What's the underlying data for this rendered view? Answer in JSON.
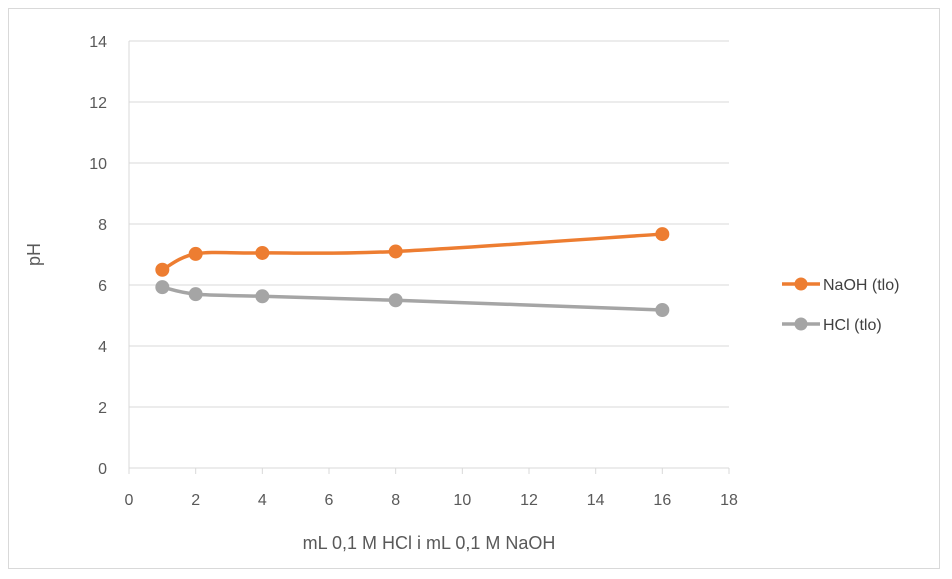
{
  "chart_data": {
    "type": "line",
    "xlabel": "mL 0,1 M HCl i mL 0,1 M NaOH",
    "ylabel": "pH",
    "xlim": [
      0,
      18
    ],
    "ylim": [
      0,
      14
    ],
    "xticks": [
      "0",
      "2",
      "4",
      "6",
      "8",
      "10",
      "12",
      "14",
      "16",
      "18"
    ],
    "yticks": [
      "0",
      "2",
      "4",
      "6",
      "8",
      "10",
      "12",
      "14"
    ],
    "grid": "horizontal",
    "legend_position": "right",
    "series": [
      {
        "name": "NaOH (tlo)",
        "color": "#ED7D31",
        "x": [
          1,
          2,
          4,
          8,
          16
        ],
        "y": [
          6.5,
          7.02,
          7.05,
          7.1,
          7.67
        ]
      },
      {
        "name": "HCl (tlo)",
        "color": "#A5A5A5",
        "x": [
          1,
          2,
          4,
          8,
          16
        ],
        "y": [
          5.93,
          5.7,
          5.63,
          5.5,
          5.18
        ]
      }
    ]
  }
}
